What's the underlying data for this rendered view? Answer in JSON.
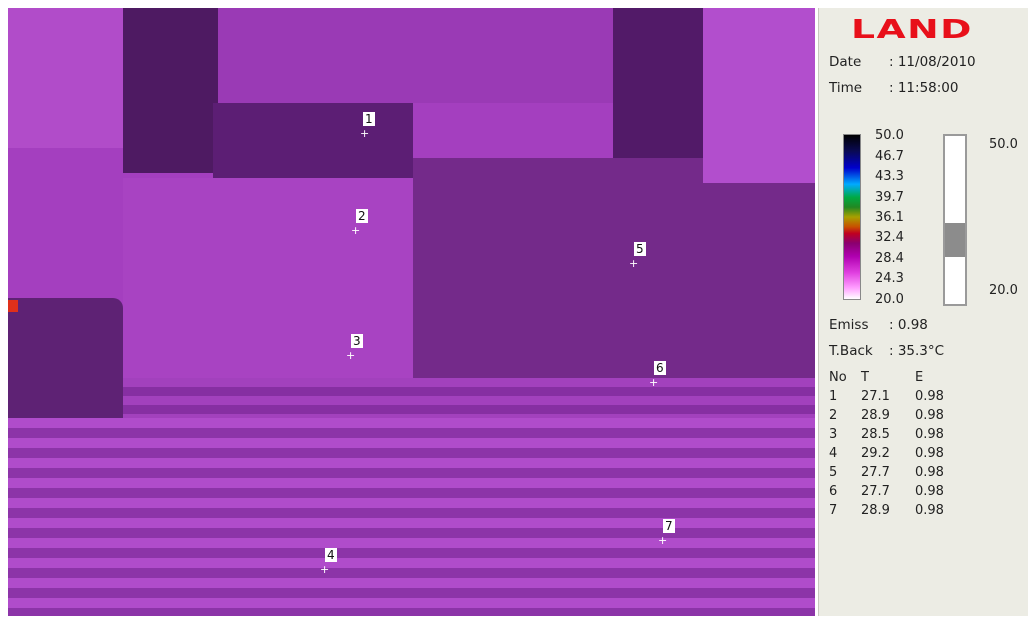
{
  "panel": {
    "logo": "LAND",
    "date_label": "Date",
    "date_value": ": 11/08/2010",
    "time_label": "Time",
    "time_value": ": 11:58:00",
    "scale_ticks": [
      "50.0",
      "46.7",
      "43.3",
      "39.7",
      "36.1",
      "32.4",
      "28.4",
      "24.3",
      "20.0"
    ],
    "range_max": "50.0",
    "range_min": "20.0",
    "range_window_fraction": {
      "top": 0.52,
      "bottom": 0.72
    },
    "emiss_label": "Emiss",
    "emiss_value": ": 0.98",
    "tback_label": "T.Back",
    "tback_value": ": 35.3°C",
    "table_headers": [
      "No",
      "T",
      "E"
    ],
    "spots": [
      {
        "no": "1",
        "t": "27.1",
        "e": "0.98"
      },
      {
        "no": "2",
        "t": "28.9",
        "e": "0.98"
      },
      {
        "no": "3",
        "t": "28.5",
        "e": "0.98"
      },
      {
        "no": "4",
        "t": "29.2",
        "e": "0.98"
      },
      {
        "no": "5",
        "t": "27.7",
        "e": "0.98"
      },
      {
        "no": "6",
        "t": "27.7",
        "e": "0.98"
      },
      {
        "no": "7",
        "t": "28.9",
        "e": "0.98"
      }
    ]
  },
  "image_markers": [
    "1",
    "2",
    "3",
    "4",
    "5",
    "6",
    "7"
  ],
  "colors": {
    "logo": "#e8101a",
    "thermal_base": "#a43fbf",
    "thermal_dark": "#5a1a6e"
  }
}
